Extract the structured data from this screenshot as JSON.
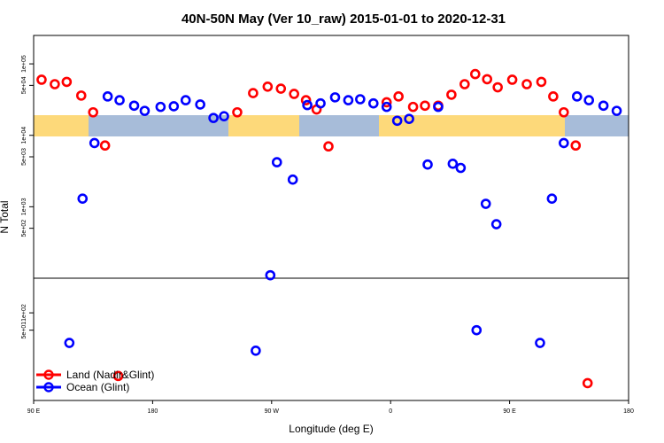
{
  "chart_data": {
    "type": "scatter",
    "title": "40N-50N May (Ver 10_raw)   2015-01-01 to 2020-12-31",
    "xlabel": "Longitude (deg E)",
    "ylabel": "N Total",
    "x_ticks": [
      {
        "value": 90,
        "label": "90 E"
      },
      {
        "value": 180,
        "label": "180"
      },
      {
        "value": 270,
        "label": "90 W"
      },
      {
        "value": 360,
        "label": "0"
      },
      {
        "value": 450,
        "label": "90 E"
      },
      {
        "value": 540,
        "label": "180"
      }
    ],
    "xlim": [
      90,
      540
    ],
    "upper_panel": {
      "scale": "log",
      "ylim": [
        100,
        250000
      ],
      "y_ticks": [
        {
          "value": 500,
          "label": "5e+02"
        },
        {
          "value": 1000,
          "label": "1e+03"
        },
        {
          "value": 5000,
          "label": "5e+03"
        },
        {
          "value": 10000,
          "label": "1e+04"
        },
        {
          "value": 50000,
          "label": "5e+04"
        },
        {
          "value": 100000,
          "label": "1e+05"
        }
      ]
    },
    "lower_panel": {
      "scale": "log",
      "ylim": [
        3,
        400
      ],
      "y_ticks": [
        {
          "value": 50,
          "label": "5e+01"
        },
        {
          "value": 100,
          "label": "1e+02"
        }
      ]
    },
    "series": [
      {
        "name": "Land (Nadir&Glint)",
        "color": "#ff0000",
        "points": [
          {
            "x": 96,
            "y": 60000
          },
          {
            "x": 106,
            "y": 52000
          },
          {
            "x": 115,
            "y": 56000
          },
          {
            "x": 126,
            "y": 36000
          },
          {
            "x": 135,
            "y": 21000
          },
          {
            "x": 144,
            "y": 7200
          },
          {
            "x": 244,
            "y": 21000
          },
          {
            "x": 256,
            "y": 39000
          },
          {
            "x": 267,
            "y": 48000
          },
          {
            "x": 277,
            "y": 45000
          },
          {
            "x": 287,
            "y": 38000
          },
          {
            "x": 296,
            "y": 31000
          },
          {
            "x": 304,
            "y": 23000
          },
          {
            "x": 313,
            "y": 7000
          },
          {
            "x": 357,
            "y": 29000
          },
          {
            "x": 366,
            "y": 35000
          },
          {
            "x": 377,
            "y": 25000
          },
          {
            "x": 386,
            "y": 26000
          },
          {
            "x": 396,
            "y": 26000
          },
          {
            "x": 406,
            "y": 37000
          },
          {
            "x": 416,
            "y": 52000
          },
          {
            "x": 424,
            "y": 72000
          },
          {
            "x": 433,
            "y": 61000
          },
          {
            "x": 441,
            "y": 47000
          },
          {
            "x": 452,
            "y": 60000
          },
          {
            "x": 463,
            "y": 52000
          },
          {
            "x": 474,
            "y": 56000
          },
          {
            "x": 483,
            "y": 35000
          },
          {
            "x": 491,
            "y": 21000
          },
          {
            "x": 500,
            "y": 7200
          },
          {
            "x": 154,
            "y": 8
          },
          {
            "x": 509,
            "y": 6
          }
        ]
      },
      {
        "name": "Ocean (Glint)",
        "color": "#0000ff",
        "points": [
          {
            "x": 127,
            "y": 1300
          },
          {
            "x": 136,
            "y": 7800
          },
          {
            "x": 146,
            "y": 35000
          },
          {
            "x": 155,
            "y": 31000
          },
          {
            "x": 166,
            "y": 26000
          },
          {
            "x": 174,
            "y": 22000
          },
          {
            "x": 186,
            "y": 25000
          },
          {
            "x": 196,
            "y": 25500
          },
          {
            "x": 205,
            "y": 31000
          },
          {
            "x": 216,
            "y": 27000
          },
          {
            "x": 226,
            "y": 17500
          },
          {
            "x": 234,
            "y": 18500
          },
          {
            "x": 274,
            "y": 4200
          },
          {
            "x": 286,
            "y": 2400
          },
          {
            "x": 297,
            "y": 26500
          },
          {
            "x": 307,
            "y": 28000
          },
          {
            "x": 318,
            "y": 34000
          },
          {
            "x": 328,
            "y": 31000
          },
          {
            "x": 337,
            "y": 32000
          },
          {
            "x": 347,
            "y": 28000
          },
          {
            "x": 357,
            "y": 25000
          },
          {
            "x": 365,
            "y": 16000
          },
          {
            "x": 374,
            "y": 17000
          },
          {
            "x": 396,
            "y": 25000
          },
          {
            "x": 388,
            "y": 3900
          },
          {
            "x": 407,
            "y": 4000
          },
          {
            "x": 413,
            "y": 3500
          },
          {
            "x": 432,
            "y": 1100
          },
          {
            "x": 440,
            "y": 570
          },
          {
            "x": 482,
            "y": 1300
          },
          {
            "x": 491,
            "y": 7800
          },
          {
            "x": 501,
            "y": 35000
          },
          {
            "x": 510,
            "y": 31000
          },
          {
            "x": 521,
            "y": 26000
          },
          {
            "x": 531,
            "y": 22000
          },
          {
            "x": 117,
            "y": 30
          },
          {
            "x": 258,
            "y": 22
          },
          {
            "x": 269,
            "y": 110
          },
          {
            "x": 425,
            "y": 50
          },
          {
            "x": 473,
            "y": 30
          }
        ]
      }
    ],
    "legend": {
      "position": "bottom-left",
      "entries": [
        "Land (Nadir&Glint)",
        "Ocean (Glint)"
      ]
    }
  }
}
